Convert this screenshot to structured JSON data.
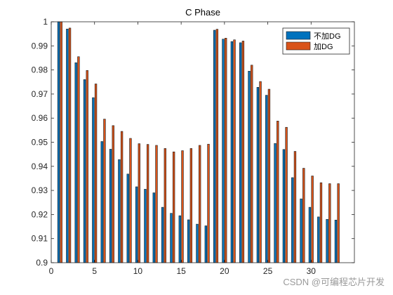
{
  "chart_data": {
    "type": "bar",
    "title": "C Phase",
    "xlabel": "",
    "ylabel": "",
    "xlim": [
      0,
      35
    ],
    "ylim": [
      0.9,
      1.0
    ],
    "xticks": [
      "0",
      "5",
      "10",
      "15",
      "20",
      "25",
      "30"
    ],
    "yticks": [
      "0.9",
      "0.91",
      "0.92",
      "0.93",
      "0.94",
      "0.95",
      "0.96",
      "0.97",
      "0.98",
      "0.99",
      "1"
    ],
    "grid": false,
    "legend_position": "top-right",
    "categories": [
      1,
      2,
      3,
      4,
      5,
      6,
      7,
      8,
      9,
      10,
      11,
      12,
      13,
      14,
      15,
      16,
      17,
      18,
      19,
      20,
      21,
      22,
      23,
      24,
      25,
      26,
      27,
      28,
      29,
      30,
      31,
      32,
      33
    ],
    "series": [
      {
        "name": "不加DG",
        "color": "#0072BD",
        "values": [
          1.0,
          0.997,
          0.983,
          0.976,
          0.9685,
          0.9503,
          0.9471,
          0.9428,
          0.9368,
          0.9315,
          0.9305,
          0.929,
          0.923,
          0.9205,
          0.9195,
          0.9178,
          0.916,
          0.9153,
          0.9965,
          0.9928,
          0.9918,
          0.9913,
          0.9795,
          0.9728,
          0.9695,
          0.9495,
          0.947,
          0.9353,
          0.9265,
          0.923,
          0.919,
          0.918,
          0.9177
        ]
      },
      {
        "name": "加DG",
        "color": "#D95319",
        "values": [
          1.0,
          0.9974,
          0.9855,
          0.9798,
          0.9742,
          0.9596,
          0.9569,
          0.9545,
          0.9516,
          0.9494,
          0.9491,
          0.9487,
          0.9474,
          0.946,
          0.9465,
          0.9474,
          0.9487,
          0.9492,
          0.9969,
          0.9932,
          0.9925,
          0.992,
          0.982,
          0.9752,
          0.972,
          0.9588,
          0.9562,
          0.9462,
          0.9392,
          0.936,
          0.9332,
          0.9328,
          0.9328
        ]
      }
    ]
  },
  "watermark": "CSDN @可编程芯片开发"
}
